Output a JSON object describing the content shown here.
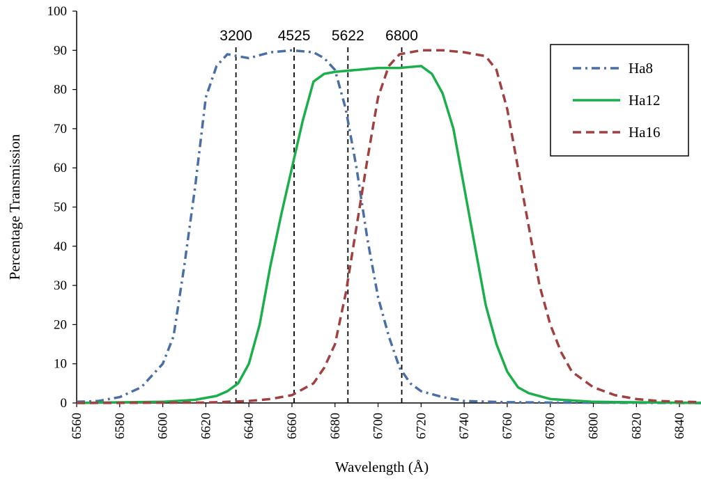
{
  "chart_data": {
    "type": "line",
    "title": "",
    "xlabel": "Wavelength (Å)",
    "ylabel": "Percentage Transmission",
    "xlim": [
      6560,
      6850
    ],
    "ylim": [
      0,
      100
    ],
    "x_ticks": [
      6560,
      6580,
      6600,
      6620,
      6640,
      6660,
      6680,
      6700,
      6720,
      6740,
      6760,
      6780,
      6800,
      6820,
      6840
    ],
    "y_ticks": [
      0,
      10,
      20,
      30,
      40,
      50,
      60,
      70,
      80,
      90,
      100
    ],
    "grid": false,
    "legend_position": "top-right",
    "vertical_lines": [
      {
        "x": 6634,
        "label": "3200"
      },
      {
        "x": 6661,
        "label": "4525"
      },
      {
        "x": 6686,
        "label": "5622"
      },
      {
        "x": 6711,
        "label": "6800"
      }
    ],
    "series": [
      {
        "name": "Ha8",
        "color": "#4a6fa5",
        "dash": "dash-dot",
        "points": [
          [
            6560,
            0.3
          ],
          [
            6570,
            0.5
          ],
          [
            6580,
            1.5
          ],
          [
            6590,
            4
          ],
          [
            6600,
            10
          ],
          [
            6605,
            17
          ],
          [
            6610,
            35
          ],
          [
            6615,
            55
          ],
          [
            6620,
            78
          ],
          [
            6625,
            86
          ],
          [
            6630,
            89
          ],
          [
            6640,
            88
          ],
          [
            6650,
            89.5
          ],
          [
            6660,
            90
          ],
          [
            6670,
            89.5
          ],
          [
            6675,
            88
          ],
          [
            6680,
            85
          ],
          [
            6685,
            75
          ],
          [
            6690,
            60
          ],
          [
            6695,
            42
          ],
          [
            6700,
            27
          ],
          [
            6705,
            17
          ],
          [
            6710,
            9
          ],
          [
            6715,
            5
          ],
          [
            6720,
            3
          ],
          [
            6730,
            1.5
          ],
          [
            6740,
            0.5
          ],
          [
            6760,
            0.2
          ],
          [
            6780,
            0.1
          ],
          [
            6850,
            0
          ]
        ]
      },
      {
        "name": "Ha12",
        "color": "#1aaf4a",
        "dash": "solid",
        "points": [
          [
            6560,
            0
          ],
          [
            6600,
            0.3
          ],
          [
            6615,
            0.8
          ],
          [
            6625,
            1.8
          ],
          [
            6630,
            3
          ],
          [
            6635,
            5
          ],
          [
            6640,
            10
          ],
          [
            6645,
            20
          ],
          [
            6650,
            35
          ],
          [
            6655,
            48
          ],
          [
            6660,
            60
          ],
          [
            6665,
            72
          ],
          [
            6670,
            82
          ],
          [
            6675,
            84
          ],
          [
            6680,
            84.5
          ],
          [
            6690,
            85
          ],
          [
            6700,
            85.5
          ],
          [
            6710,
            85.5
          ],
          [
            6720,
            86
          ],
          [
            6725,
            84
          ],
          [
            6730,
            79
          ],
          [
            6735,
            70
          ],
          [
            6740,
            55
          ],
          [
            6745,
            40
          ],
          [
            6750,
            25
          ],
          [
            6755,
            15
          ],
          [
            6760,
            8
          ],
          [
            6765,
            4
          ],
          [
            6770,
            2.5
          ],
          [
            6780,
            1
          ],
          [
            6800,
            0.3
          ],
          [
            6850,
            0
          ]
        ]
      },
      {
        "name": "Ha16",
        "color": "#a04040",
        "dash": "dash",
        "points": [
          [
            6560,
            0
          ],
          [
            6620,
            0.1
          ],
          [
            6640,
            0.5
          ],
          [
            6650,
            1
          ],
          [
            6660,
            2
          ],
          [
            6670,
            5
          ],
          [
            6675,
            9
          ],
          [
            6680,
            15
          ],
          [
            6685,
            28
          ],
          [
            6690,
            45
          ],
          [
            6695,
            62
          ],
          [
            6700,
            78
          ],
          [
            6705,
            86
          ],
          [
            6710,
            89
          ],
          [
            6720,
            90
          ],
          [
            6730,
            90
          ],
          [
            6740,
            89.5
          ],
          [
            6750,
            88.5
          ],
          [
            6755,
            85
          ],
          [
            6760,
            75
          ],
          [
            6765,
            60
          ],
          [
            6770,
            45
          ],
          [
            6775,
            30
          ],
          [
            6780,
            20
          ],
          [
            6785,
            13
          ],
          [
            6790,
            8
          ],
          [
            6800,
            4
          ],
          [
            6810,
            2
          ],
          [
            6820,
            1
          ],
          [
            6830,
            0.5
          ],
          [
            6850,
            0.2
          ]
        ]
      }
    ]
  }
}
